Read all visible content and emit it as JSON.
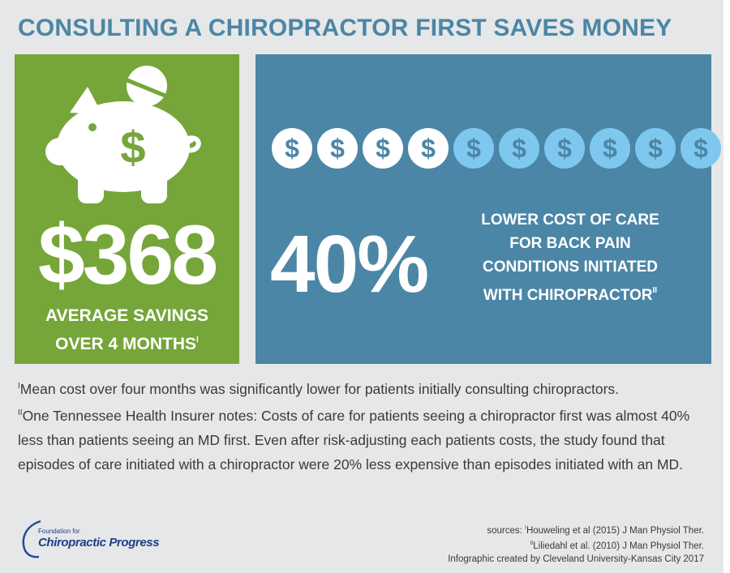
{
  "title": "CONSULTING A CHIROPRACTOR FIRST SAVES MONEY",
  "colors": {
    "green": "#76a53a",
    "blue": "#4b86a6",
    "light_blue": "#7ec8ef",
    "background": "#e6e7e8"
  },
  "savings": {
    "icon": "piggy-bank-icon",
    "icon_symbol": "$",
    "amount": "$368",
    "caption_line1": "AVERAGE SAVINGS",
    "caption_line2": "OVER 4 MONTHS",
    "caption_ref": "I"
  },
  "cost": {
    "coins_total": 10,
    "coins_highlighted": 4,
    "coin_symbol": "$",
    "percent": "40%",
    "caption": "LOWER COST OF CARE\nFOR  BACK PAIN\nCONDITIONS INITIATED\nWITH CHIROPRACTOR",
    "caption_ref": "II"
  },
  "footnotes": {
    "note1_ref": "I",
    "note1": "Mean cost over four months was significantly lower for patients initially consulting chiropractors.",
    "note2_ref": "II",
    "note2": "One Tennessee Health Insurer notes: Costs of care for patients seeing a chiropractor first was almost 40% less than patients seeing an MD first. Even after risk-adjusting each patients costs, the study found that episodes of care initiated with a chiropractor were 20% less expensive than episodes initiated with an MD."
  },
  "logo": {
    "small": "Foundation for",
    "big": "Chiropractic Progress"
  },
  "sources": {
    "label": "sources: ",
    "ref1": "I",
    "source1": "Houweling et al (2015) J Man Physiol Ther.",
    "ref2": "II",
    "source2": "Liliedahl et al. (2010) J Man Physiol Ther.",
    "credit": "Infographic created by Cleveland University-Kansas City 2017"
  }
}
